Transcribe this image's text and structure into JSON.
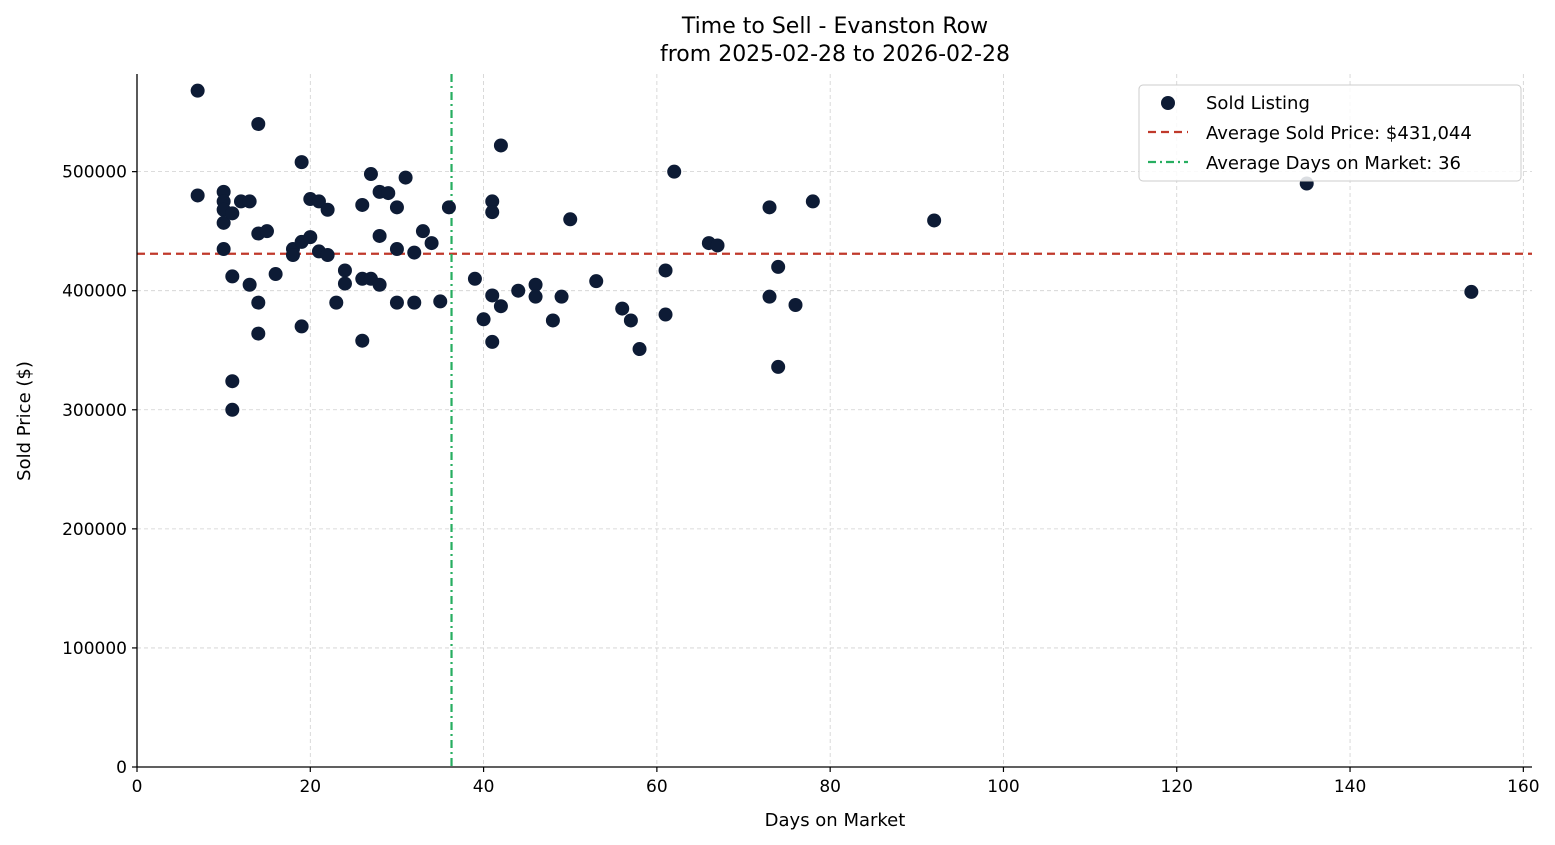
{
  "chart_data": {
    "type": "scatter",
    "title": "Time to Sell - Evanston Row",
    "subtitle": "from 2025-02-28 to 2026-02-28",
    "xlabel": "Days on Market",
    "ylabel": "Sold Price ($)",
    "xlim": [
      0,
      161
    ],
    "ylim": [
      0,
      582000
    ],
    "xticks": [
      0,
      20,
      40,
      60,
      80,
      100,
      120,
      140,
      160
    ],
    "yticks": [
      0,
      100000,
      200000,
      300000,
      400000,
      500000
    ],
    "grid": true,
    "legend_position": "top-right",
    "colors": {
      "points": "#0d1b35",
      "avg_price": "#c0392b",
      "avg_days": "#27ae60"
    },
    "series": [
      {
        "name": "Sold Listing",
        "points": [
          [
            7,
            568000
          ],
          [
            7,
            480000
          ],
          [
            10,
            483000
          ],
          [
            10,
            475000
          ],
          [
            10,
            468000
          ],
          [
            10,
            457000
          ],
          [
            10,
            435000
          ],
          [
            11,
            465000
          ],
          [
            11,
            412000
          ],
          [
            11,
            324000
          ],
          [
            11,
            300000
          ],
          [
            12,
            475000
          ],
          [
            13,
            475000
          ],
          [
            13,
            405000
          ],
          [
            14,
            540000
          ],
          [
            14,
            448000
          ],
          [
            14,
            390000
          ],
          [
            14,
            364000
          ],
          [
            15,
            450000
          ],
          [
            16,
            414000
          ],
          [
            18,
            435000
          ],
          [
            18,
            430000
          ],
          [
            19,
            508000
          ],
          [
            19,
            441000
          ],
          [
            19,
            370000
          ],
          [
            20,
            477000
          ],
          [
            20,
            445000
          ],
          [
            21,
            475000
          ],
          [
            21,
            433000
          ],
          [
            22,
            468000
          ],
          [
            22,
            430000
          ],
          [
            23,
            390000
          ],
          [
            24,
            417000
          ],
          [
            24,
            406000
          ],
          [
            26,
            472000
          ],
          [
            26,
            410000
          ],
          [
            26,
            358000
          ],
          [
            27,
            498000
          ],
          [
            27,
            410000
          ],
          [
            28,
            483000
          ],
          [
            28,
            446000
          ],
          [
            28,
            405000
          ],
          [
            29,
            482000
          ],
          [
            30,
            470000
          ],
          [
            30,
            435000
          ],
          [
            30,
            390000
          ],
          [
            31,
            495000
          ],
          [
            32,
            432000
          ],
          [
            32,
            390000
          ],
          [
            33,
            450000
          ],
          [
            34,
            440000
          ],
          [
            35,
            391000
          ],
          [
            36,
            470000
          ],
          [
            39,
            410000
          ],
          [
            40,
            376000
          ],
          [
            41,
            475000
          ],
          [
            41,
            466000
          ],
          [
            41,
            396000
          ],
          [
            41,
            357000
          ],
          [
            42,
            522000
          ],
          [
            42,
            387000
          ],
          [
            44,
            400000
          ],
          [
            46,
            405000
          ],
          [
            46,
            395000
          ],
          [
            48,
            375000
          ],
          [
            49,
            395000
          ],
          [
            50,
            460000
          ],
          [
            53,
            408000
          ],
          [
            56,
            385000
          ],
          [
            57,
            375000
          ],
          [
            58,
            351000
          ],
          [
            61,
            417000
          ],
          [
            61,
            380000
          ],
          [
            62,
            500000
          ],
          [
            66,
            440000
          ],
          [
            67,
            438000
          ],
          [
            73,
            470000
          ],
          [
            73,
            395000
          ],
          [
            74,
            420000
          ],
          [
            74,
            336000
          ],
          [
            76,
            388000
          ],
          [
            78,
            475000
          ],
          [
            92,
            459000
          ],
          [
            135,
            490000
          ],
          [
            154,
            399000
          ]
        ]
      }
    ],
    "average_sold_price": 431044,
    "average_days_on_market": 36.3,
    "legend": [
      "Sold Listing",
      "Average Sold Price: $431,044",
      "Average Days on Market: 36"
    ]
  }
}
